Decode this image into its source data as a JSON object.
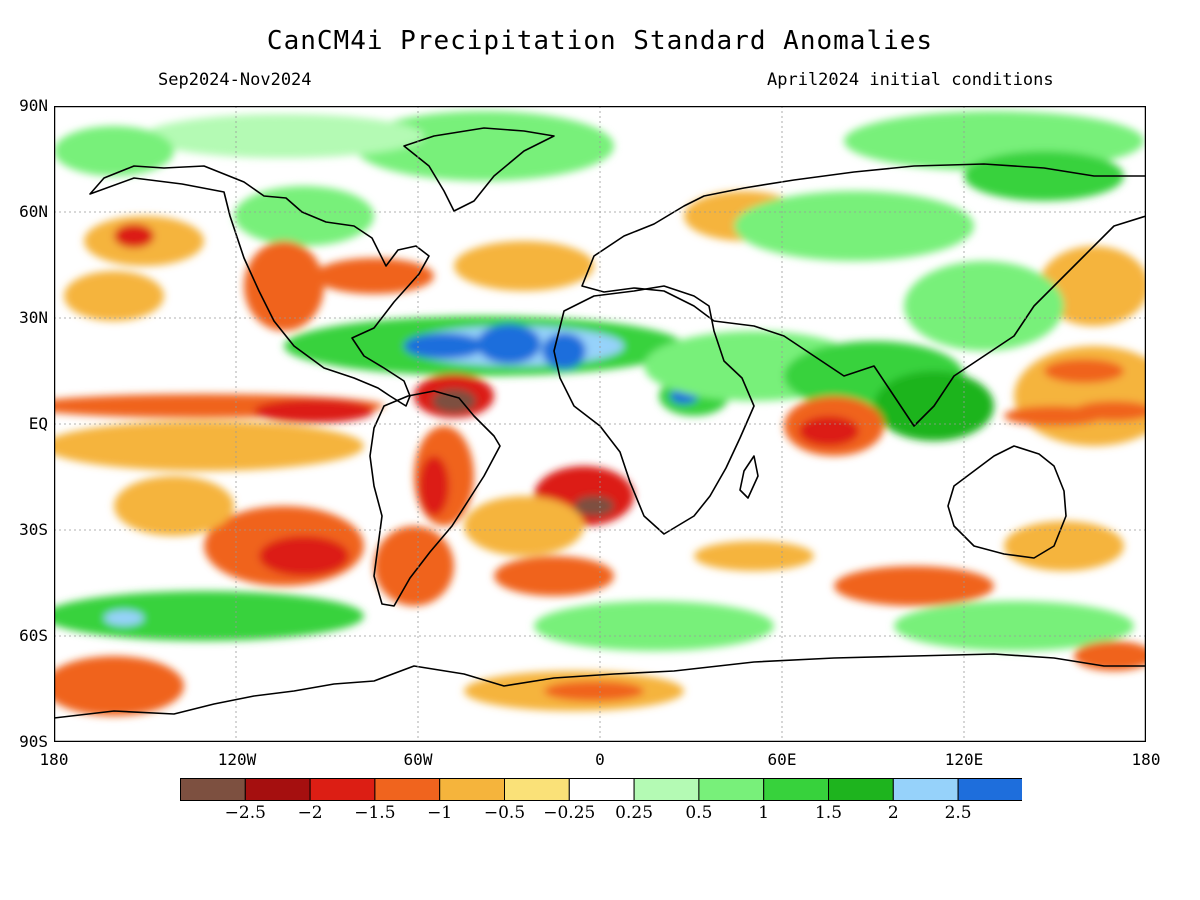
{
  "title": "CanCM4i Precipitation Standard Anomalies",
  "period": "Sep2024-Nov2024",
  "init": "April2024 initial conditions",
  "lat_labels": [
    "90N",
    "60N",
    "30N",
    "EQ",
    "30S",
    "60S",
    "90S"
  ],
  "lon_labels": [
    "180",
    "120W",
    "60W",
    "0",
    "60E",
    "120E",
    "180"
  ],
  "colorbar": {
    "colors": [
      "#7d5040",
      "#a50f0f",
      "#dc1e14",
      "#f0641e",
      "#f5b43c",
      "#fae178",
      "#ffffff",
      "#b4fab4",
      "#78f07a",
      "#37d23c",
      "#1eb41e",
      "#96d2fa",
      "#1e6edc"
    ],
    "labels": [
      "-2.5",
      "-2",
      "-1.5",
      "-1",
      "-0.5",
      "-0.25",
      "0.25",
      "0.5",
      "1",
      "1.5",
      "2",
      "2.5"
    ]
  }
}
